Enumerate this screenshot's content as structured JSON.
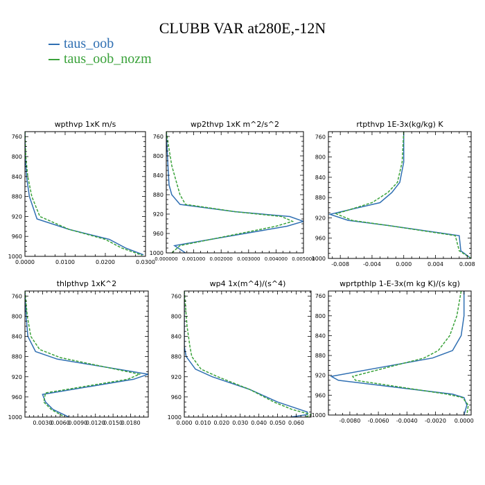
{
  "title": "CLUBB VAR at280E,-12N",
  "legend": [
    {
      "name": "taus_oob",
      "color": "#2f6fb2"
    },
    {
      "name": "taus_oob_nozm",
      "color": "#3aa23a",
      "dashed": true
    }
  ],
  "chart_data": [
    {
      "type": "line",
      "title": "wpthvp   1xK m/s",
      "xlim": [
        0,
        0.03
      ],
      "ylim": [
        1000,
        750
      ],
      "xticks": [
        "0.0000",
        "0.0100",
        "0.0200",
        "0.0300"
      ],
      "xtick_values": [
        0,
        0.01,
        0.02,
        0.03
      ],
      "yticks": [
        760,
        800,
        840,
        880,
        920,
        960,
        1000
      ],
      "series": [
        {
          "name": "taus_oob",
          "points": [
            [
              0.0,
              750
            ],
            [
              0.0001,
              800
            ],
            [
              0.0004,
              840
            ],
            [
              0.0011,
              880
            ],
            [
              0.003,
              925
            ],
            [
              0.011,
              946
            ],
            [
              0.021,
              966
            ],
            [
              0.025,
              983
            ],
            [
              0.0295,
              997
            ]
          ]
        },
        {
          "name": "taus_oob_nozm",
          "points": [
            [
              0.0,
              750
            ],
            [
              0.0002,
              800
            ],
            [
              0.0007,
              840
            ],
            [
              0.0017,
              880
            ],
            [
              0.0037,
              920
            ],
            [
              0.011,
              946
            ],
            [
              0.02,
              966
            ],
            [
              0.024,
              983
            ],
            [
              0.0292,
              998
            ]
          ]
        }
      ]
    },
    {
      "type": "line",
      "title": "wp2thvp   1xK m^2/s^2",
      "xlim": [
        0,
        0.005
      ],
      "ylim": [
        1000,
        750
      ],
      "xticks": [
        "0.000000",
        "0.001000",
        "0.002000",
        "0.003000",
        "0.004000",
        "0.005000"
      ],
      "xtick_values": [
        0,
        0.001,
        0.002,
        0.003,
        0.004,
        0.005
      ],
      "yticks": [
        760,
        800,
        840,
        880,
        920,
        960,
        1000
      ],
      "series": [
        {
          "name": "taus_oob",
          "points": [
            [
              0.0,
              750
            ],
            [
              6e-05,
              820
            ],
            [
              0.0001,
              860
            ],
            [
              0.0002,
              880
            ],
            [
              0.0005,
              900
            ],
            [
              0.0025,
              915
            ],
            [
              0.0045,
              925
            ],
            [
              0.005,
              935
            ],
            [
              0.0044,
              945
            ],
            [
              0.0003,
              985
            ],
            [
              0.0007,
              1000
            ]
          ]
        },
        {
          "name": "taus_oob_nozm",
          "points": [
            [
              0.0,
              750
            ],
            [
              0.0002,
              820
            ],
            [
              0.0004,
              860
            ],
            [
              0.0005,
              880
            ],
            [
              0.0007,
              900
            ],
            [
              0.0025,
              915
            ],
            [
              0.0042,
              925
            ],
            [
              0.0046,
              935
            ],
            [
              0.004,
              945
            ],
            [
              0.0005,
              985
            ],
            [
              0.0002,
              1000
            ]
          ]
        }
      ]
    },
    {
      "type": "line",
      "title": "rtpthvp   1E-3x(kg/kg) K",
      "xlim": [
        -0.0095,
        0.0085
      ],
      "ylim": [
        1000,
        750
      ],
      "xticks": [
        "-0.008",
        "-0.004",
        "0.000",
        "0.004",
        "0.008"
      ],
      "xtick_values": [
        -0.008,
        -0.004,
        0,
        0.004,
        0.008
      ],
      "yticks": [
        760,
        800,
        840,
        880,
        920,
        960,
        1000
      ],
      "series": [
        {
          "name": "taus_oob",
          "points": [
            [
              0.0,
              750
            ],
            [
              0.0,
              810
            ],
            [
              -0.0005,
              850
            ],
            [
              -0.0015,
              870
            ],
            [
              -0.003,
              890
            ],
            [
              -0.0093,
              913
            ],
            [
              -0.007,
              925
            ],
            [
              -0.002,
              935
            ],
            [
              0.007,
              955
            ],
            [
              0.0072,
              985
            ],
            [
              0.0085,
              1000
            ]
          ]
        },
        {
          "name": "taus_oob_nozm",
          "points": [
            [
              0.0,
              750
            ],
            [
              -0.0002,
              810
            ],
            [
              -0.0008,
              850
            ],
            [
              -0.002,
              870
            ],
            [
              -0.004,
              890
            ],
            [
              -0.0085,
              912
            ],
            [
              -0.0065,
              925
            ],
            [
              -0.002,
              935
            ],
            [
              0.0065,
              955
            ],
            [
              0.007,
              985
            ],
            [
              0.0085,
              1000
            ]
          ]
        }
      ]
    },
    {
      "type": "line",
      "title": "thlpthvp   1xK^2",
      "xlim": [
        0,
        0.021
      ],
      "ylim": [
        1000,
        750
      ],
      "xticks": [
        "0.0030",
        "0.0060",
        "0.0090",
        "0.0120",
        "0.0150",
        "0.0180"
      ],
      "xtick_values": [
        0.003,
        0.006,
        0.009,
        0.012,
        0.015,
        0.018
      ],
      "yticks": [
        760,
        800,
        840,
        880,
        920,
        960,
        1000
      ],
      "series": [
        {
          "name": "taus_oob",
          "points": [
            [
              0.0,
              750
            ],
            [
              0.0002,
              800
            ],
            [
              0.0005,
              840
            ],
            [
              0.0018,
              870
            ],
            [
              0.0055,
              885
            ],
            [
              0.021,
              915
            ],
            [
              0.0185,
              925
            ],
            [
              0.003,
              955
            ],
            [
              0.0035,
              970
            ],
            [
              0.0048,
              985
            ],
            [
              0.0075,
              1000
            ]
          ]
        },
        {
          "name": "taus_oob_nozm",
          "points": [
            [
              0.0,
              750
            ],
            [
              0.0004,
              800
            ],
            [
              0.001,
              840
            ],
            [
              0.0025,
              866
            ],
            [
              0.006,
              882
            ],
            [
              0.0195,
              915
            ],
            [
              0.0175,
              925
            ],
            [
              0.0035,
              952
            ],
            [
              0.0032,
              970
            ],
            [
              0.0045,
              985
            ],
            [
              0.0068,
              1000
            ]
          ]
        }
      ]
    },
    {
      "type": "line",
      "title": "wp4   1x(m^4)/(s^4)",
      "xlim": [
        0,
        0.068
      ],
      "ylim": [
        1000,
        750
      ],
      "xticks": [
        "0.000",
        "0.010",
        "0.020",
        "0.030",
        "0.040",
        "0.050",
        "0.060"
      ],
      "xtick_values": [
        0,
        0.01,
        0.02,
        0.03,
        0.04,
        0.05,
        0.06
      ],
      "yticks": [
        760,
        800,
        840,
        880,
        920,
        960,
        1000
      ],
      "series": [
        {
          "name": "taus_oob",
          "points": [
            [
              0.0,
              750
            ],
            [
              0.0,
              820
            ],
            [
              0.0,
              860
            ],
            [
              0.001,
              880
            ],
            [
              0.006,
              905
            ],
            [
              0.015,
              920
            ],
            [
              0.035,
              945
            ],
            [
              0.05,
              970
            ],
            [
              0.062,
              985
            ],
            [
              0.066,
              990
            ],
            [
              0.066,
              995
            ],
            [
              0.057,
              1000
            ]
          ]
        },
        {
          "name": "taus_oob_nozm",
          "points": [
            [
              0.0,
              750
            ],
            [
              0.0015,
              820
            ],
            [
              0.003,
              860
            ],
            [
              0.004,
              880
            ],
            [
              0.009,
              905
            ],
            [
              0.018,
              920
            ],
            [
              0.035,
              945
            ],
            [
              0.048,
              970
            ],
            [
              0.058,
              985
            ],
            [
              0.063,
              990
            ],
            [
              0.068,
              995
            ],
            [
              0.065,
              1000
            ]
          ]
        }
      ]
    },
    {
      "type": "line",
      "title": "wprtpthlp   1-E-3x(m kg K)/(s kg)",
      "xlim": [
        -0.0095,
        0.0005
      ],
      "ylim": [
        1000,
        750
      ],
      "xticks": [
        "-0.0080",
        "-0.0060",
        "-0.0040",
        "-0.0020",
        "0.0000"
      ],
      "xtick_values": [
        -0.008,
        -0.006,
        -0.004,
        -0.002,
        0
      ],
      "yticks": [
        760,
        800,
        840,
        880,
        920,
        960,
        1000
      ],
      "series": [
        {
          "name": "taus_oob",
          "points": [
            [
              0.0,
              750
            ],
            [
              0.0,
              800
            ],
            [
              -0.0002,
              840
            ],
            [
              -0.0008,
              870
            ],
            [
              -0.0022,
              885
            ],
            [
              -0.0093,
              922
            ],
            [
              -0.0088,
              930
            ],
            [
              -0.0008,
              958
            ],
            [
              0.0,
              965
            ],
            [
              0.0002,
              980
            ],
            [
              0.0,
              1000
            ]
          ]
        },
        {
          "name": "taus_oob_nozm",
          "points": [
            [
              -0.0002,
              750
            ],
            [
              -0.0005,
              800
            ],
            [
              -0.001,
              840
            ],
            [
              -0.0018,
              870
            ],
            [
              -0.0028,
              885
            ],
            [
              -0.0078,
              922
            ],
            [
              -0.0076,
              930
            ],
            [
              -0.0012,
              958
            ],
            [
              -0.0001,
              965
            ],
            [
              0.0003,
              980
            ],
            [
              0.0002,
              1000
            ]
          ]
        }
      ]
    }
  ]
}
